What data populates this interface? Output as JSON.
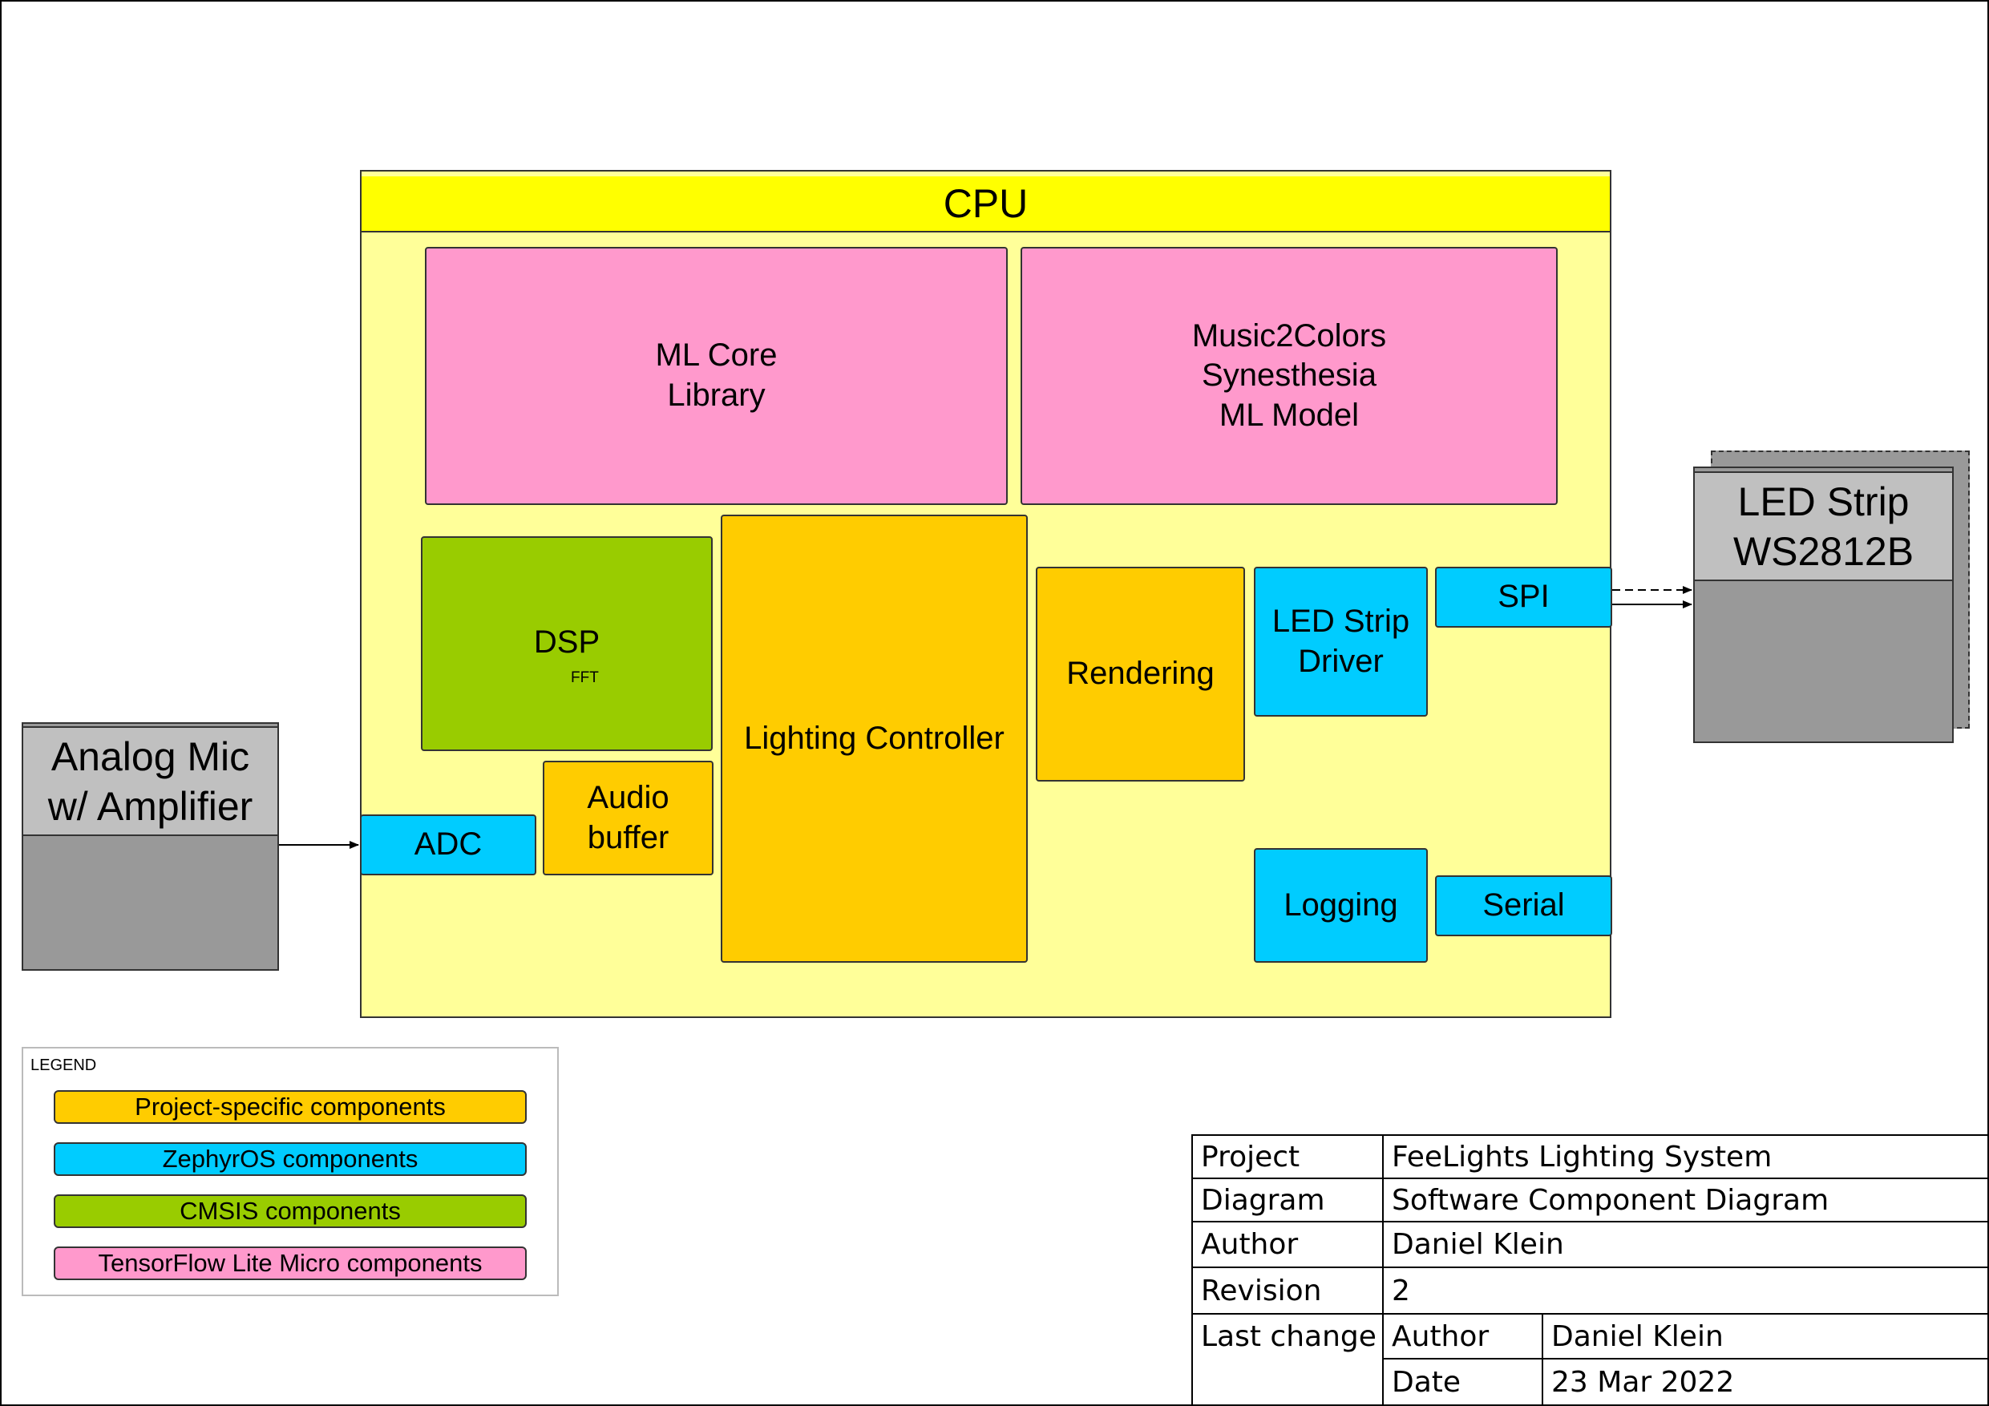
{
  "cpu": {
    "title": "CPU",
    "blocks": {
      "ml_core": "ML Core\nLibrary",
      "music2colors": "Music2Colors\nSynesthesia\nML Model",
      "dsp": "DSP",
      "dsp_sub": "FFT",
      "lighting_controller": "Lighting Controller",
      "rendering": "Rendering",
      "led_strip_driver": "LED Strip\nDriver",
      "spi": "SPI",
      "adc": "ADC",
      "audio_buffer": "Audio\nbuffer",
      "logging": "Logging",
      "serial": "Serial"
    }
  },
  "external": {
    "mic": "Analog Mic\nw/ Amplifier",
    "led_strip": "LED Strip\nWS2812B"
  },
  "legend": {
    "title": "LEGEND",
    "items": [
      {
        "label": "Project-specific components",
        "color": "#ffcc00"
      },
      {
        "label": "ZephyrOS components",
        "color": "#00ccff"
      },
      {
        "label": "CMSIS components",
        "color": "#99cc00"
      },
      {
        "label": "TensorFlow Lite Micro components",
        "color": "#ff99cc"
      }
    ]
  },
  "title_block": {
    "project_label": "Project",
    "project_value": "FeeLights Lighting System",
    "diagram_label": "Diagram",
    "diagram_value": "Software Component Diagram",
    "author_label": "Author",
    "author_value": "Daniel Klein",
    "revision_label": "Revision",
    "revision_value": "2",
    "last_change_label": "Last change",
    "last_change_author_label": "Author",
    "last_change_author_value": "Daniel Klein",
    "date_label": "Date",
    "date_value": "23 Mar 2022"
  },
  "colors": {
    "project_specific": "#ffcc00",
    "zephyr": "#00ccff",
    "cmsis": "#99cc00",
    "tflite_micro": "#ff99cc",
    "cpu_body": "#ffff99",
    "cpu_header": "#ffff00",
    "external_head": "#c0c0c0",
    "external_body": "#999999"
  }
}
